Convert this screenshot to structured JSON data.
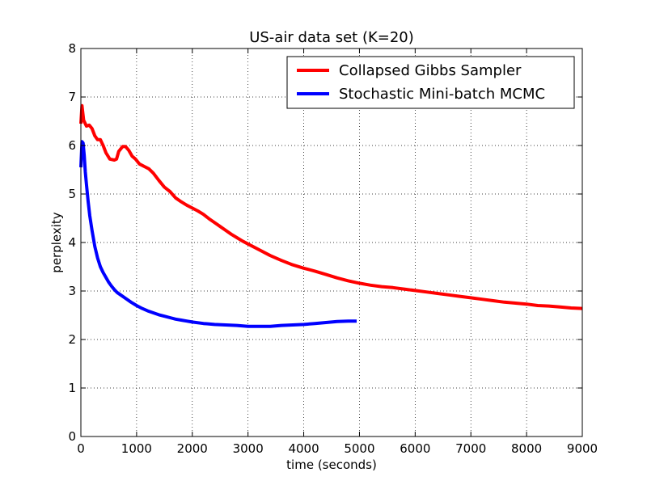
{
  "chart_data": {
    "type": "line",
    "title": "US-air data set (K=20)",
    "xlabel": "time (seconds)",
    "ylabel": "perplexity",
    "xlim": [
      0,
      9000
    ],
    "ylim": [
      0,
      8
    ],
    "xticks": [
      0,
      1000,
      2000,
      3000,
      4000,
      5000,
      6000,
      7000,
      8000,
      9000
    ],
    "yticks": [
      0,
      1,
      2,
      3,
      4,
      5,
      6,
      7,
      8
    ],
    "grid": true,
    "legend_position": "top-right",
    "series": [
      {
        "name": "Collapsed Gibbs Sampler",
        "color": "#ff0000",
        "points": [
          [
            0,
            6.45
          ],
          [
            20,
            6.82
          ],
          [
            50,
            6.52
          ],
          [
            100,
            6.4
          ],
          [
            150,
            6.42
          ],
          [
            200,
            6.35
          ],
          [
            250,
            6.2
          ],
          [
            300,
            6.12
          ],
          [
            350,
            6.12
          ],
          [
            400,
            6.0
          ],
          [
            450,
            5.85
          ],
          [
            520,
            5.72
          ],
          [
            600,
            5.7
          ],
          [
            640,
            5.72
          ],
          [
            680,
            5.88
          ],
          [
            750,
            5.98
          ],
          [
            800,
            5.98
          ],
          [
            860,
            5.9
          ],
          [
            920,
            5.78
          ],
          [
            980,
            5.72
          ],
          [
            1050,
            5.62
          ],
          [
            1150,
            5.56
          ],
          [
            1220,
            5.52
          ],
          [
            1300,
            5.43
          ],
          [
            1400,
            5.28
          ],
          [
            1500,
            5.14
          ],
          [
            1600,
            5.05
          ],
          [
            1700,
            4.92
          ],
          [
            1800,
            4.84
          ],
          [
            1900,
            4.77
          ],
          [
            2000,
            4.71
          ],
          [
            2100,
            4.65
          ],
          [
            2200,
            4.58
          ],
          [
            2300,
            4.49
          ],
          [
            2400,
            4.41
          ],
          [
            2500,
            4.33
          ],
          [
            2600,
            4.25
          ],
          [
            2700,
            4.17
          ],
          [
            2800,
            4.1
          ],
          [
            2900,
            4.03
          ],
          [
            3000,
            3.97
          ],
          [
            3200,
            3.85
          ],
          [
            3400,
            3.73
          ],
          [
            3600,
            3.63
          ],
          [
            3800,
            3.54
          ],
          [
            4000,
            3.47
          ],
          [
            4200,
            3.41
          ],
          [
            4400,
            3.34
          ],
          [
            4600,
            3.27
          ],
          [
            4800,
            3.21
          ],
          [
            5000,
            3.16
          ],
          [
            5200,
            3.12
          ],
          [
            5400,
            3.09
          ],
          [
            5600,
            3.07
          ],
          [
            5800,
            3.04
          ],
          [
            6000,
            3.01
          ],
          [
            6200,
            2.98
          ],
          [
            6400,
            2.95
          ],
          [
            6600,
            2.92
          ],
          [
            6800,
            2.89
          ],
          [
            7000,
            2.86
          ],
          [
            7200,
            2.83
          ],
          [
            7400,
            2.8
          ],
          [
            7600,
            2.77
          ],
          [
            7800,
            2.75
          ],
          [
            8000,
            2.73
          ],
          [
            8200,
            2.7
          ],
          [
            8400,
            2.69
          ],
          [
            8600,
            2.67
          ],
          [
            8800,
            2.65
          ],
          [
            9000,
            2.64
          ]
        ]
      },
      {
        "name": "Stochastic Mini-batch MCMC",
        "color": "#0000ff",
        "points": [
          [
            0,
            5.55
          ],
          [
            20,
            6.08
          ],
          [
            40,
            6.05
          ],
          [
            60,
            5.8
          ],
          [
            80,
            5.45
          ],
          [
            100,
            5.2
          ],
          [
            130,
            4.85
          ],
          [
            160,
            4.55
          ],
          [
            200,
            4.25
          ],
          [
            250,
            3.92
          ],
          [
            300,
            3.68
          ],
          [
            350,
            3.5
          ],
          [
            400,
            3.38
          ],
          [
            450,
            3.28
          ],
          [
            500,
            3.18
          ],
          [
            550,
            3.1
          ],
          [
            600,
            3.03
          ],
          [
            650,
            2.97
          ],
          [
            700,
            2.93
          ],
          [
            800,
            2.85
          ],
          [
            900,
            2.77
          ],
          [
            1000,
            2.7
          ],
          [
            1100,
            2.64
          ],
          [
            1200,
            2.59
          ],
          [
            1300,
            2.55
          ],
          [
            1400,
            2.51
          ],
          [
            1500,
            2.48
          ],
          [
            1600,
            2.45
          ],
          [
            1700,
            2.42
          ],
          [
            1800,
            2.4
          ],
          [
            1900,
            2.38
          ],
          [
            2000,
            2.36
          ],
          [
            2200,
            2.33
          ],
          [
            2400,
            2.31
          ],
          [
            2600,
            2.3
          ],
          [
            2800,
            2.29
          ],
          [
            3000,
            2.27
          ],
          [
            3200,
            2.27
          ],
          [
            3400,
            2.27
          ],
          [
            3600,
            2.29
          ],
          [
            3800,
            2.3
          ],
          [
            4000,
            2.31
          ],
          [
            4200,
            2.33
          ],
          [
            4400,
            2.35
          ],
          [
            4600,
            2.37
          ],
          [
            4800,
            2.38
          ],
          [
            4950,
            2.38
          ]
        ]
      }
    ]
  }
}
